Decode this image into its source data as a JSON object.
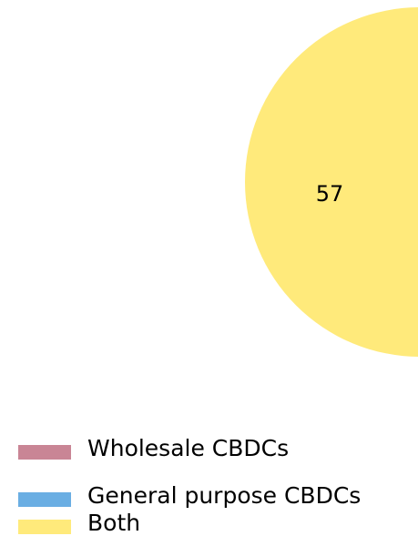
{
  "chart_data": {
    "type": "pie",
    "categories": [
      "Wholesale CBDCs",
      "General purpose CBDCs",
      "Both"
    ],
    "series": [
      {
        "name": "Wholesale CBDCs",
        "color": "#c98595",
        "values": [
          null,
          null,
          null
        ]
      },
      {
        "name": "General purpose CBDCs",
        "color": "#6aaee3",
        "values": [
          null,
          null,
          null
        ]
      },
      {
        "name": "Both",
        "color": "#ffea7b",
        "values": [
          null,
          null,
          57
        ]
      }
    ]
  }
}
